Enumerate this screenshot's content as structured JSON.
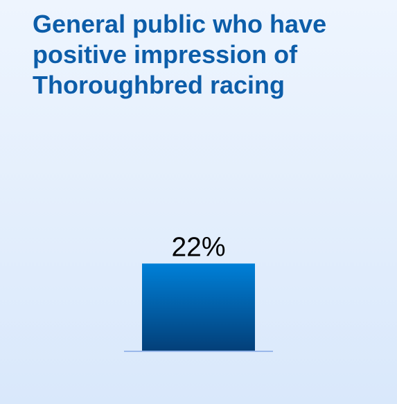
{
  "chart_data": {
    "type": "bar",
    "title": "General public who have positive impression of Thoroughbred racing",
    "categories": [
      ""
    ],
    "values": [
      22
    ],
    "value_labels": [
      "22%"
    ],
    "unit": "%",
    "xlabel": "",
    "ylabel": "",
    "ylim": [
      0,
      100
    ],
    "grid": false,
    "legend": "none",
    "colors": {
      "bar_top": "#0080d8",
      "bar_bottom": "#033f78",
      "baseline": "#9ab8ea",
      "title": "#0c5da9",
      "background": "#e3eefc"
    }
  }
}
